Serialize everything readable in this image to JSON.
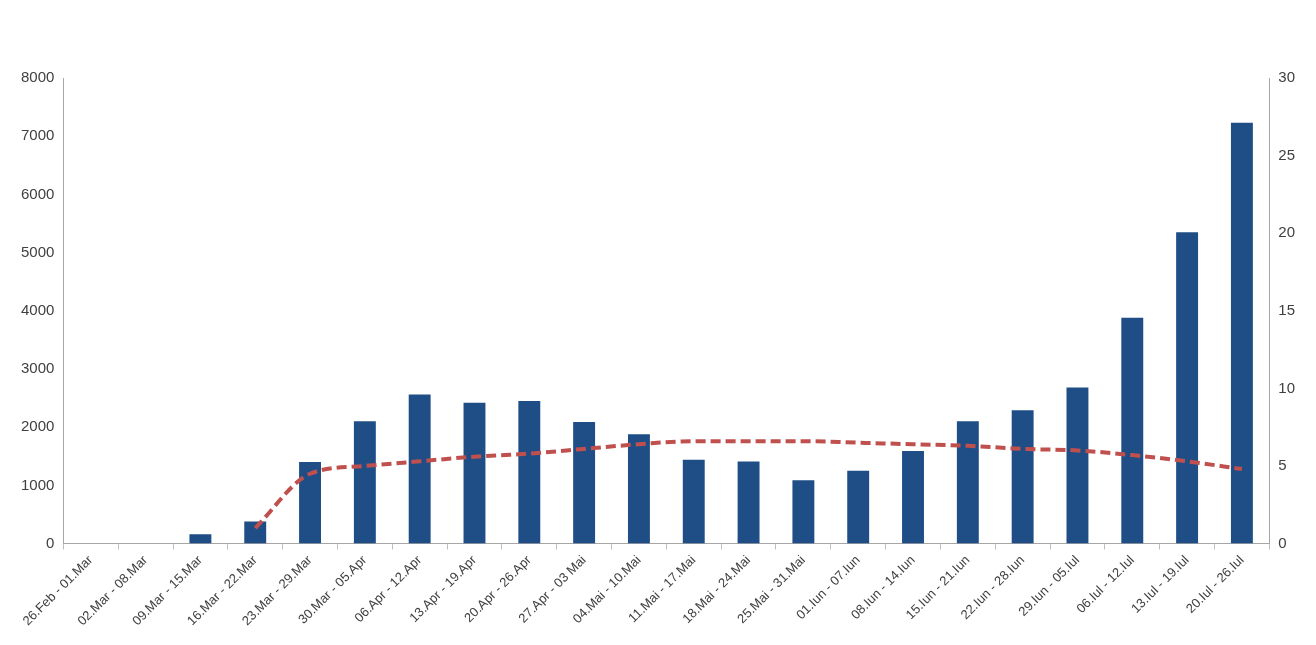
{
  "chart_data": {
    "type": "bar",
    "categories": [
      "26.Feb - 01.Mar",
      "02.Mar - 08.Mar",
      "09.Mar - 15.Mar",
      "16.Mar - 22.Mar",
      "23.Mar - 29.Mar",
      "30.Mar - 05.Apr",
      "06.Apr - 12.Apr",
      "13.Apr - 19.Apr",
      "20.Apr - 26.Apr",
      "27.Apr - 03 Mai",
      "04.Mai - 10.Mai",
      "11.Mai - 17.Mai",
      "18.Mai - 24.Mai",
      "25.Mai - 31.Mai",
      "01.Iun - 07.Iun",
      "08.Iun - 14.Iun",
      "15.Iun - 21.Iun",
      "22.Iun - 28.Iun",
      "29.Iun - 05.Iul",
      "06.Iul - 12.Iul",
      "13.Iul - 19.Iul",
      "20.Iul - 26.Iul"
    ],
    "series": [
      {
        "color": "#1f4e86",
        "values": [
          0,
          0,
          160,
          380,
          1400,
          2100,
          2560,
          2420,
          2450,
          2090,
          1880,
          1440,
          1410,
          1090,
          1250,
          1590,
          2100,
          2290,
          2680,
          3880,
          5350,
          7230
        ]
      },
      {
        "type": "line",
        "axis": "y2",
        "color": "#c0504d",
        "line_style": "dashed",
        "marker": "none",
        "values": [
          null,
          null,
          null,
          1.0,
          4.5,
          5.0,
          5.3,
          5.6,
          5.8,
          6.1,
          6.4,
          6.6,
          6.6,
          6.6,
          6.5,
          6.4,
          6.3,
          6.1,
          6.0,
          5.7,
          5.3,
          4.8
        ]
      }
    ],
    "ylim": [
      0,
      8000
    ],
    "yticks": [
      0,
      1000,
      2000,
      3000,
      4000,
      5000,
      6000,
      7000,
      8000
    ],
    "y2lim": [
      0,
      30
    ],
    "y2ticks": [
      0,
      5,
      10,
      15,
      20,
      25,
      30
    ],
    "grid": false,
    "legend": false
  }
}
